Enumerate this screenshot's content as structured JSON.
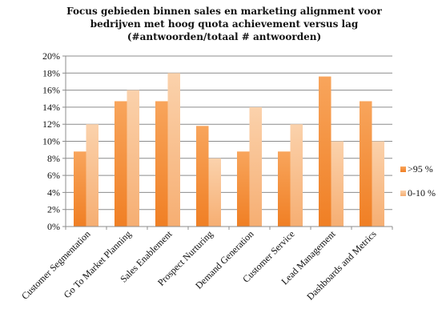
{
  "chart_data": {
    "type": "bar",
    "title_lines": [
      "Focus gebieden binnen sales en marketing alignment  voor",
      "bedrijven met hoog quota achievement versus lag",
      "(#antwoorden/totaal # antwoorden)"
    ],
    "categories": [
      "Customer Segmentation",
      "Go To Market Planning",
      "Sales Enablement",
      "Prospect Nurturing",
      "Demand Generation",
      "Customer Service",
      "Lead Management",
      "Dashboards and Metrics"
    ],
    "series": [
      {
        "name": ">95 %",
        "values": [
          8.8,
          14.7,
          14.7,
          11.8,
          8.8,
          8.8,
          17.6,
          14.7
        ]
      },
      {
        "name": "0-10 %",
        "values": [
          12,
          16,
          18,
          8,
          14,
          12,
          10,
          10
        ]
      }
    ],
    "y_ticks": [
      "0%",
      "2%",
      "4%",
      "6%",
      "8%",
      "10%",
      "12%",
      "14%",
      "16%",
      "18%",
      "20%"
    ],
    "ylim": [
      0,
      20
    ],
    "grid": true,
    "legend_position": "right",
    "colors": {
      "series1_top": "#f8a55c",
      "series1_bottom": "#f07f24",
      "series2_top": "#fbd2ac",
      "series2_bottom": "#f6ae72",
      "grid": "#8c8c8c",
      "axis": "#8c8c8c"
    }
  }
}
